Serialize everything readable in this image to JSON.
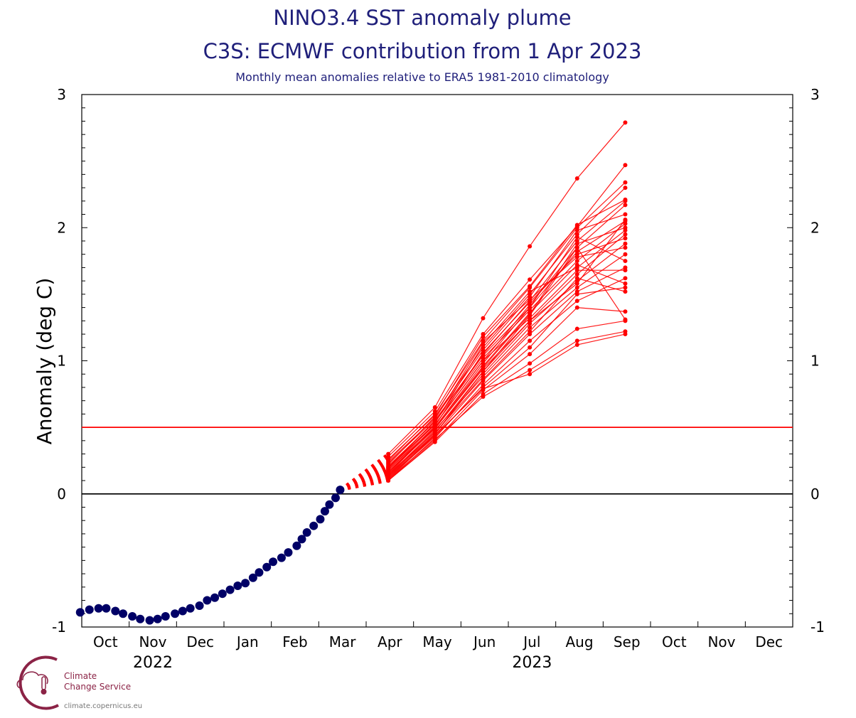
{
  "title": "NINO3.4 SST anomaly plume",
  "subtitle": "C3S: ECMWF contribution from 1 Apr 2023",
  "caption": "Monthly mean anomalies relative to ERA5 1981-2010 climatology",
  "logo": {
    "line1": "Climate",
    "line2": "Change Service",
    "url": "climate.copernicus.eu"
  },
  "chart_data": {
    "type": "line",
    "ylabel": "Anomaly (deg C)",
    "ylim": [
      -1,
      3
    ],
    "yticks": [
      "-1",
      "0",
      "1",
      "2",
      "3"
    ],
    "xlim": [
      "2022-10-01",
      "2024-01-01"
    ],
    "month_labels": [
      "Oct",
      "Nov",
      "Dec",
      "Jan",
      "Feb",
      "Mar",
      "Apr",
      "May",
      "Jun",
      "Jul",
      "Aug",
      "Sep",
      "Oct",
      "Nov",
      "Dec"
    ],
    "year_labels": [
      {
        "label": "2022",
        "month": "Nov"
      },
      {
        "label": "2023",
        "month": "Jul"
      }
    ],
    "reference_lines": [
      {
        "y": 0,
        "color": "#000000"
      },
      {
        "y": 0.5,
        "color": "#ff0000"
      }
    ],
    "colors": {
      "observed": "#000066",
      "forecast": "#ff0000",
      "title": "#1f1f7a"
    },
    "observed": {
      "dates": [
        "2022-09-30",
        "2022-10-06",
        "2022-10-12",
        "2022-10-17",
        "2022-10-23",
        "2022-10-28",
        "2022-11-03",
        "2022-11-08",
        "2022-11-14",
        "2022-11-19",
        "2022-11-24",
        "2022-11-30",
        "2022-12-05",
        "2022-12-10",
        "2022-12-16",
        "2022-12-21",
        "2022-12-26",
        "2022-12-31",
        "2023-01-05",
        "2023-01-10",
        "2023-01-15",
        "2023-01-20",
        "2023-01-24",
        "2023-01-29",
        "2023-02-02",
        "2023-02-07",
        "2023-02-11",
        "2023-02-16",
        "2023-02-19",
        "2023-02-22",
        "2023-02-26",
        "2023-03-02",
        "2023-03-05",
        "2023-03-08",
        "2023-03-12",
        "2023-03-15"
      ],
      "values": [
        -0.89,
        -0.87,
        -0.86,
        -0.86,
        -0.88,
        -0.9,
        -0.92,
        -0.94,
        -0.95,
        -0.94,
        -0.92,
        -0.9,
        -0.88,
        -0.86,
        -0.84,
        -0.8,
        -0.78,
        -0.75,
        -0.72,
        -0.69,
        -0.67,
        -0.63,
        -0.59,
        -0.55,
        -0.51,
        -0.48,
        -0.44,
        -0.39,
        -0.34,
        -0.29,
        -0.24,
        -0.19,
        -0.13,
        -0.08,
        -0.03,
        0.03
      ]
    },
    "forecast": {
      "dates": [
        "2023-04-15",
        "2023-05-15",
        "2023-06-15",
        "2023-07-15",
        "2023-08-15",
        "2023-09-15"
      ],
      "members": [
        [
          0.3,
          0.65,
          1.32,
          1.86,
          2.37,
          2.79
        ],
        [
          0.28,
          0.62,
          1.2,
          1.61,
          2.01,
          2.47
        ],
        [
          0.25,
          0.6,
          1.15,
          1.55,
          2.0,
          2.34
        ],
        [
          0.22,
          0.58,
          1.1,
          1.5,
          1.95,
          2.3
        ],
        [
          0.2,
          0.55,
          1.05,
          1.45,
          1.9,
          2.2
        ],
        [
          0.18,
          0.52,
          1.0,
          1.42,
          1.85,
          2.17
        ],
        [
          0.24,
          0.57,
          1.08,
          1.48,
          1.98,
          2.1
        ],
        [
          0.15,
          0.5,
          0.98,
          1.4,
          1.82,
          2.05
        ],
        [
          0.21,
          0.54,
          1.02,
          1.38,
          1.75,
          2.03
        ],
        [
          0.17,
          0.49,
          0.95,
          1.35,
          1.88,
          2.0
        ],
        [
          0.19,
          0.53,
          1.12,
          1.52,
          1.7,
          1.98
        ],
        [
          0.13,
          0.47,
          0.92,
          1.3,
          1.65,
          1.95
        ],
        [
          0.16,
          0.51,
          1.06,
          1.44,
          1.8,
          1.92
        ],
        [
          0.12,
          0.45,
          0.9,
          1.28,
          1.6,
          1.88
        ],
        [
          0.23,
          0.56,
          1.14,
          1.46,
          1.78,
          1.85
        ],
        [
          0.14,
          0.48,
          0.88,
          1.25,
          1.55,
          1.8
        ],
        [
          0.11,
          0.44,
          0.85,
          1.2,
          1.52,
          1.7
        ],
        [
          0.2,
          0.52,
          1.0,
          1.32,
          1.68,
          1.68
        ],
        [
          0.1,
          0.42,
          0.82,
          1.15,
          1.45,
          1.62
        ],
        [
          0.18,
          0.5,
          0.96,
          1.36,
          1.72,
          1.58
        ],
        [
          0.12,
          0.43,
          0.8,
          1.1,
          1.5,
          1.55
        ],
        [
          0.15,
          0.46,
          0.86,
          1.22,
          1.62,
          1.52
        ],
        [
          0.1,
          0.4,
          0.78,
          1.05,
          1.4,
          1.37
        ],
        [
          0.14,
          0.45,
          0.92,
          1.34,
          1.85,
          1.31
        ],
        [
          0.1,
          0.39,
          0.75,
          0.98,
          1.24,
          1.3
        ],
        [
          0.11,
          0.41,
          0.73,
          0.93,
          1.15,
          1.22
        ],
        [
          0.13,
          0.44,
          0.79,
          0.9,
          1.12,
          1.2
        ],
        [
          0.16,
          0.49,
          0.94,
          1.3,
          1.58,
          2.06
        ],
        [
          0.19,
          0.55,
          1.04,
          1.4,
          1.93,
          1.75
        ],
        [
          0.26,
          0.59,
          1.18,
          1.56,
          2.02,
          2.21
        ]
      ]
    }
  }
}
